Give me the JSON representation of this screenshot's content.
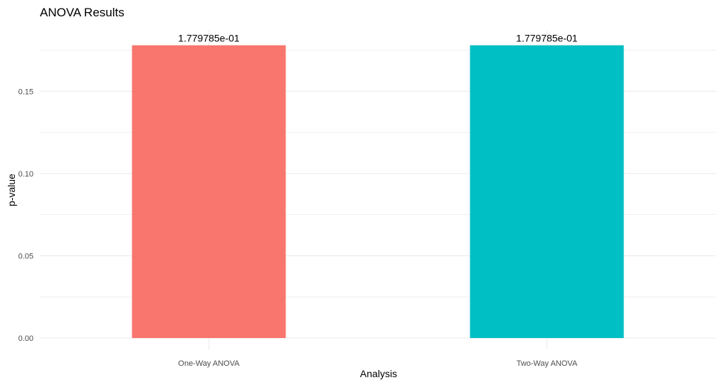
{
  "chart_data": {
    "type": "bar",
    "title": "ANOVA Results",
    "xlabel": "Analysis",
    "ylabel": "p-value",
    "categories": [
      "One-Way ANOVA",
      "Two-Way ANOVA"
    ],
    "values": [
      0.1779785,
      0.1779785
    ],
    "data_labels": [
      "1.779785e-01",
      "1.779785e-01"
    ],
    "colors": [
      "#F8766D",
      "#00BFC4"
    ],
    "ylim": [
      0,
      0.1869
    ],
    "yticks": [
      0.0,
      0.05,
      0.1,
      0.15
    ],
    "ytick_labels": [
      "0.00",
      "0.05",
      "0.10",
      "0.15"
    ],
    "grid": true,
    "gridline_color": "#ebebeb",
    "legend": "none"
  }
}
